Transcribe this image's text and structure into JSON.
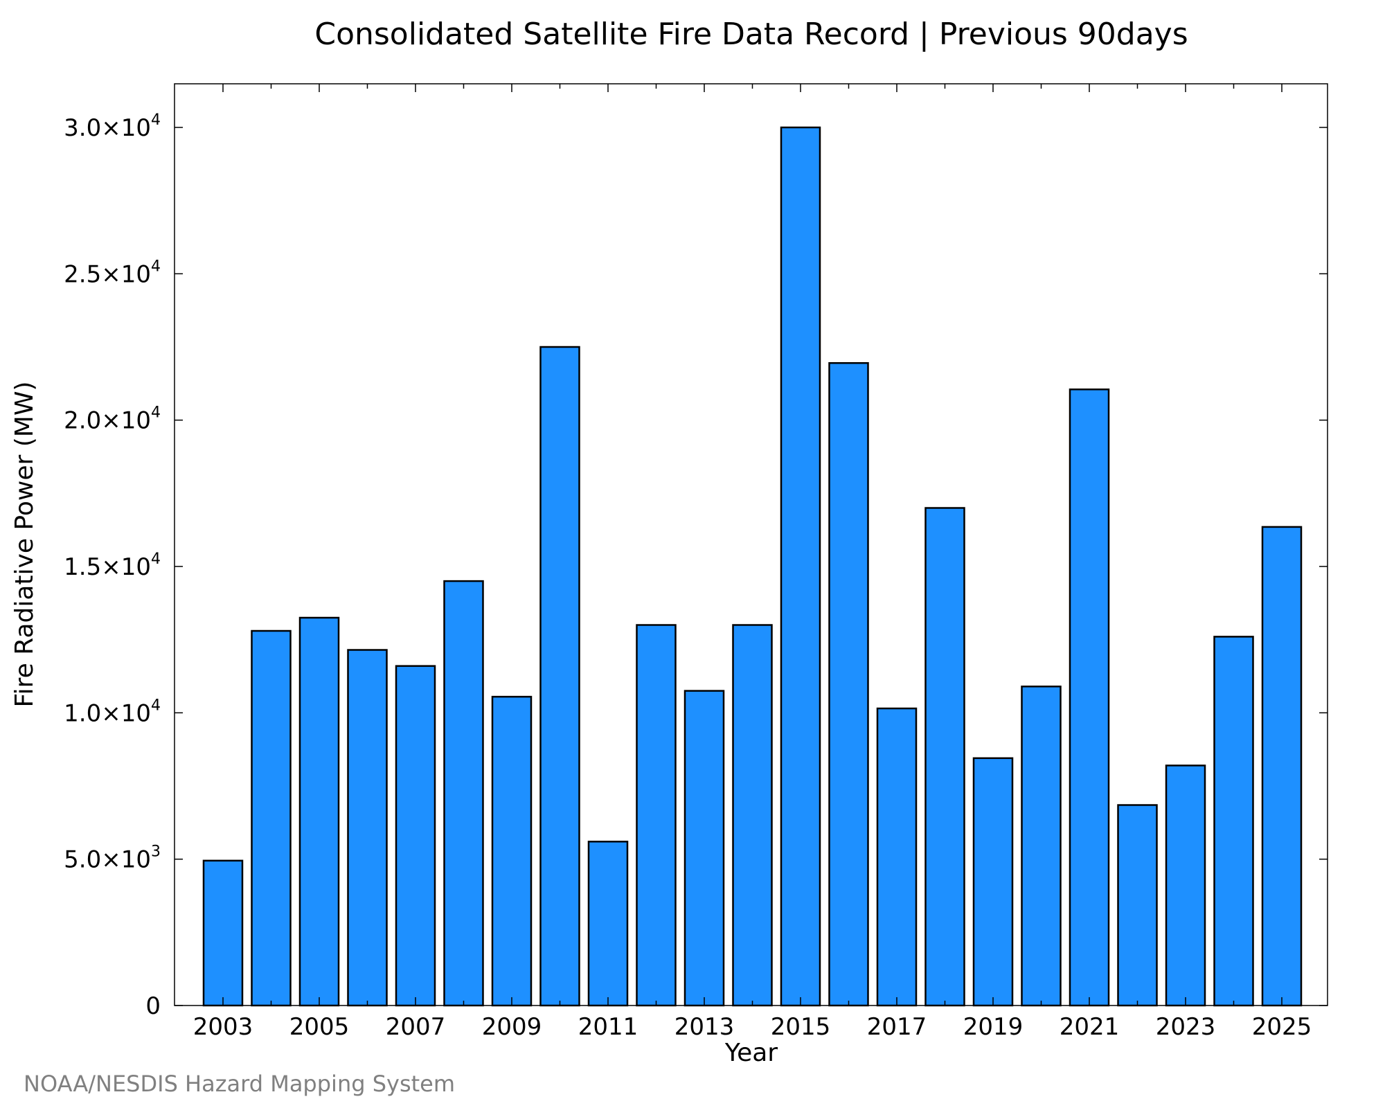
{
  "chart_data": {
    "type": "bar",
    "title": "Consolidated Satellite Fire Data Record | Previous 90days",
    "xlabel": "Year",
    "ylabel": "Fire Radiative Power (MW)",
    "ylim": [
      0,
      31500
    ],
    "grid": false,
    "bar_color": "#1E90FF",
    "bar_edge_color": "#000000",
    "categories": [
      "2003",
      "2004",
      "2005",
      "2006",
      "2007",
      "2008",
      "2009",
      "2010",
      "2011",
      "2012",
      "2013",
      "2014",
      "2015",
      "2016",
      "2017",
      "2018",
      "2019",
      "2020",
      "2021",
      "2022",
      "2023",
      "2024",
      "2025"
    ],
    "values": [
      4950,
      12800,
      13250,
      12150,
      11600,
      14500,
      10550,
      22500,
      5600,
      13000,
      10750,
      13000,
      30000,
      21950,
      10150,
      17000,
      8450,
      10900,
      21050,
      6850,
      8200,
      12600,
      16350
    ],
    "x_tick_labels": [
      "2003",
      "2005",
      "2007",
      "2009",
      "2011",
      "2013",
      "2015",
      "2017",
      "2019",
      "2021",
      "2023",
      "2025"
    ],
    "y_ticks": [
      {
        "value": 0,
        "mantissa": "0",
        "exponent": ""
      },
      {
        "value": 5000,
        "mantissa": "5.0×10",
        "exponent": "3"
      },
      {
        "value": 10000,
        "mantissa": "1.0×10",
        "exponent": "4"
      },
      {
        "value": 15000,
        "mantissa": "1.5×10",
        "exponent": "4"
      },
      {
        "value": 20000,
        "mantissa": "2.0×10",
        "exponent": "4"
      },
      {
        "value": 25000,
        "mantissa": "2.5×10",
        "exponent": "4"
      },
      {
        "value": 30000,
        "mantissa": "3.0×10",
        "exponent": "4"
      }
    ]
  },
  "footer": {
    "credit": "NOAA/NESDIS Hazard Mapping System"
  }
}
